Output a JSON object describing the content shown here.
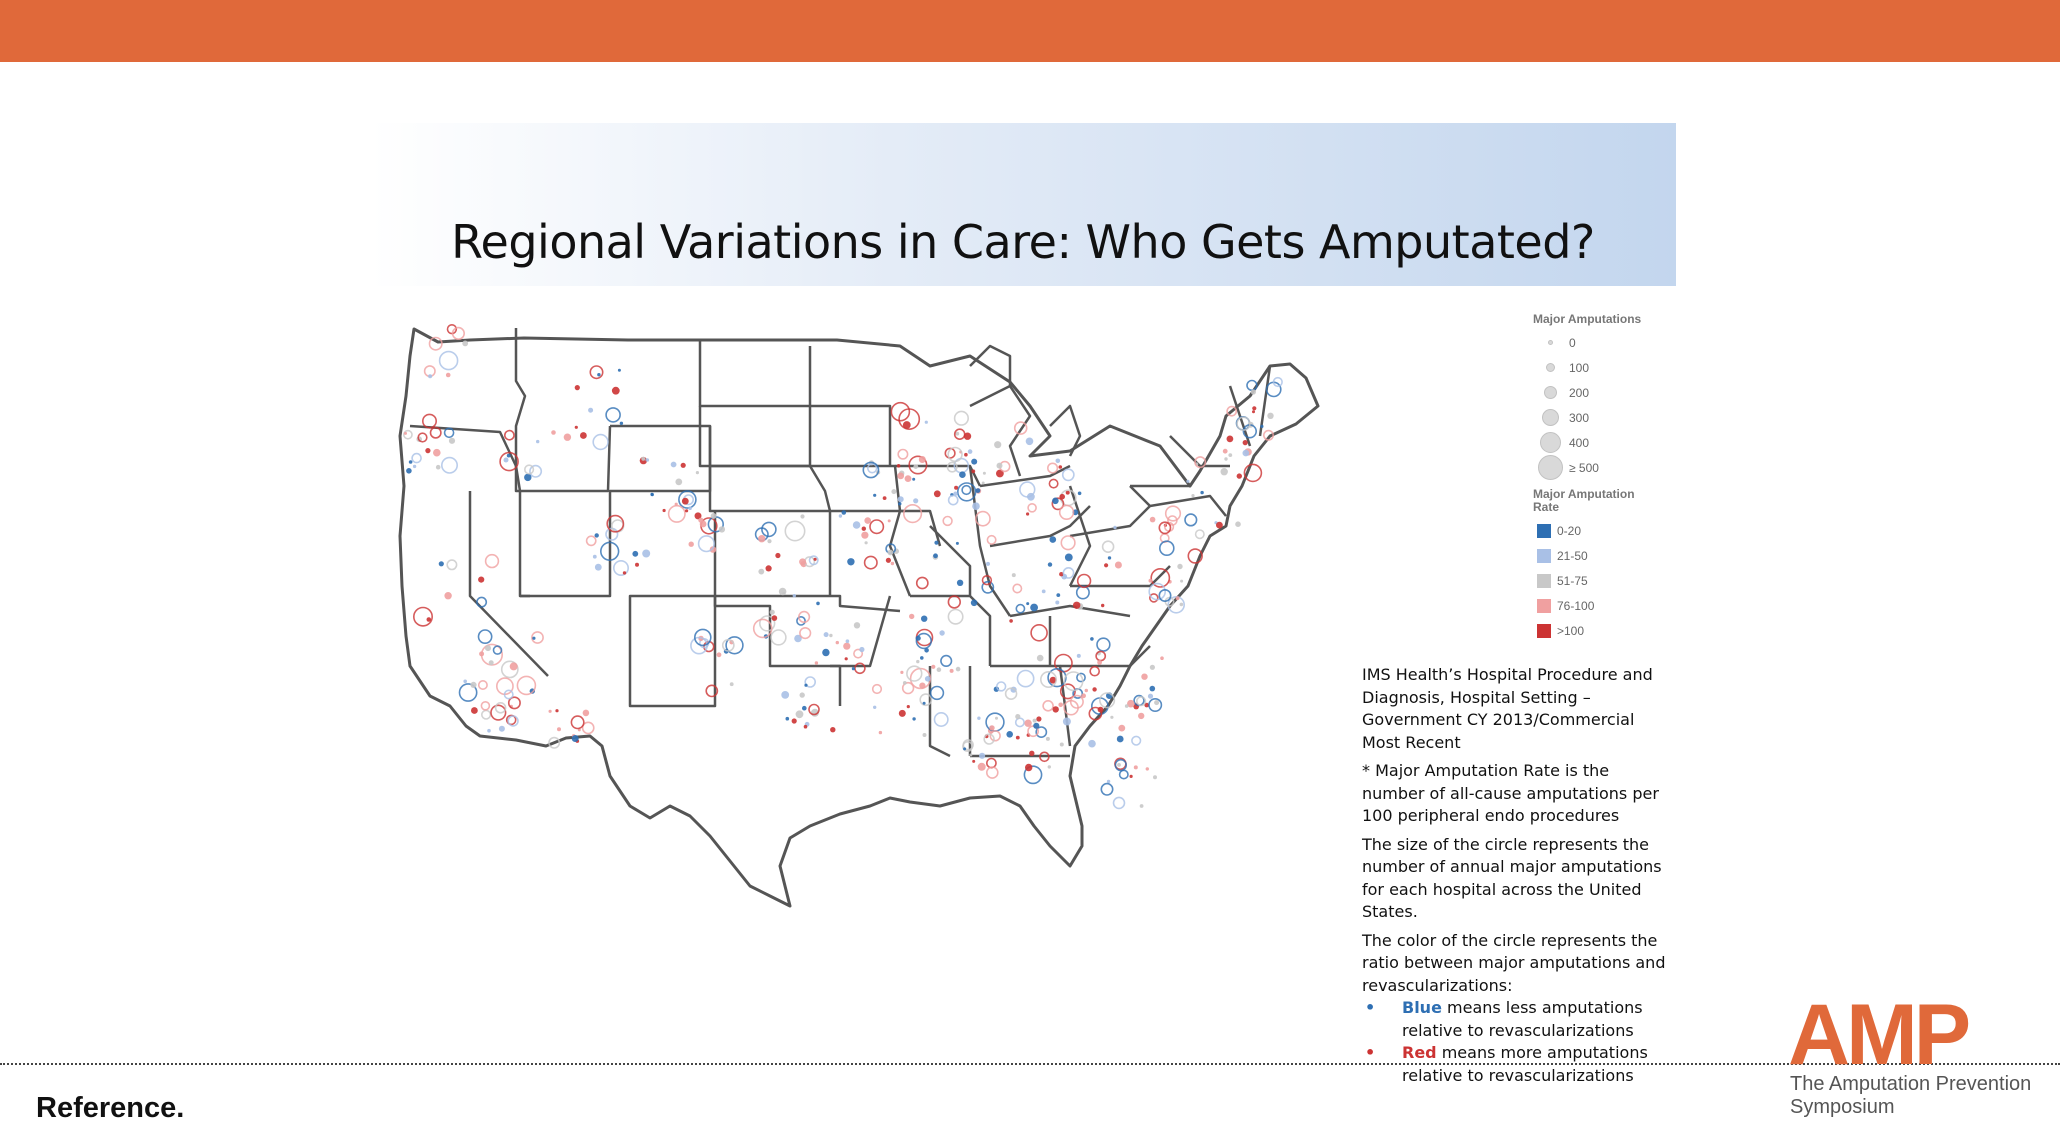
{
  "slide": {
    "title": "Regional Variations in Care: Who Gets Amputated?"
  },
  "legend": {
    "size_title": "Major Amputations",
    "sizes": [
      {
        "label": "0",
        "value": 0
      },
      {
        "label": "100",
        "value": 100
      },
      {
        "label": "200",
        "value": 200
      },
      {
        "label": "300",
        "value": 300
      },
      {
        "label": "400",
        "value": 400
      },
      {
        "label": "≥ 500",
        "value": 500
      }
    ],
    "rate_title": "Major Amputation Rate",
    "rates": [
      {
        "label": "0-20",
        "color": "#2e6fb3"
      },
      {
        "label": "21-50",
        "color": "#a9c0e6"
      },
      {
        "label": "51-75",
        "color": "#c8c8c8"
      },
      {
        "label": "76-100",
        "color": "#f0a0a0"
      },
      {
        "label": ">100",
        "color": "#cc3333"
      }
    ]
  },
  "notes": {
    "source": "IMS Health’s Hospital Procedure and Diagnosis, Hospital Setting – Government CY 2013/Commercial Most Recent",
    "rate_def": "*  Major Amputation Rate is the number of all-cause amputations per 100 peripheral endo procedures",
    "size_def": "The size of the circle represents the number of annual major amputations for each hospital across the United States.",
    "color_def": "The color of the circle represents the ratio between major amputations and revascularizations:",
    "bullets": [
      {
        "dot": "•",
        "keyword": "Blue",
        "text": " means less amputations relative to revascularizations",
        "color": "#2e6fb3"
      },
      {
        "dot": "•",
        "keyword": "Red",
        "text": " means more amputations relative to revascularizations",
        "color": "#cc3333"
      }
    ]
  },
  "footer": {
    "reference": "Reference."
  },
  "brand": {
    "logo_text": "AMP",
    "tagline_line1": "The Amputation Prevention",
    "tagline_line2": "Symposium",
    "accent": "#e0693a"
  },
  "colors": {
    "band": "#e0693a",
    "state_border": "#555555"
  }
}
